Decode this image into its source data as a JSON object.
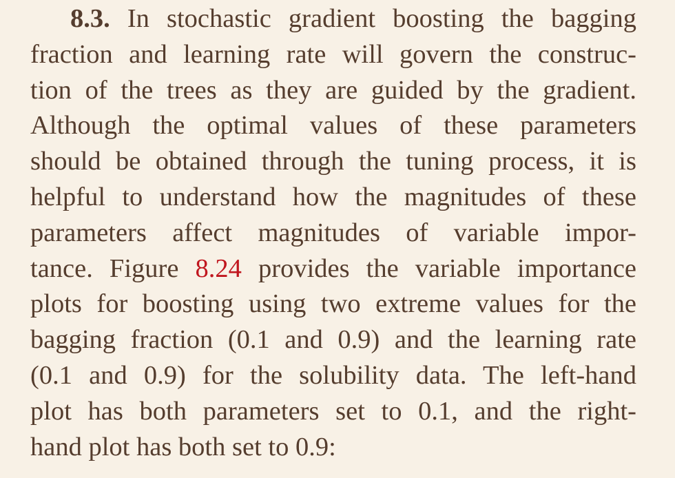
{
  "exercise": {
    "number": "8.3.",
    "figure_ref": "8.24",
    "lines": [
      "In stochastic gradient boosting the bagging",
      "fraction and learning rate will govern the construc-",
      "tion of the trees as they are guided by the gradient.",
      "Although the optimal values of these parameters",
      "should be obtained through the tuning process, it is",
      "helpful to understand how the magnitudes of these",
      "parameters affect magnitudes of variable impor-",
      "tance. Figure",
      "provides the variable importance",
      "plots for boosting using two extreme values for the",
      "bagging fraction (0.1 and 0.9) and the learning rate",
      "(0.1 and 0.9) for the solubility data. The left-hand",
      "plot has both parameters set to 0.1, and the right-",
      "hand plot has both set to 0.9:"
    ]
  }
}
